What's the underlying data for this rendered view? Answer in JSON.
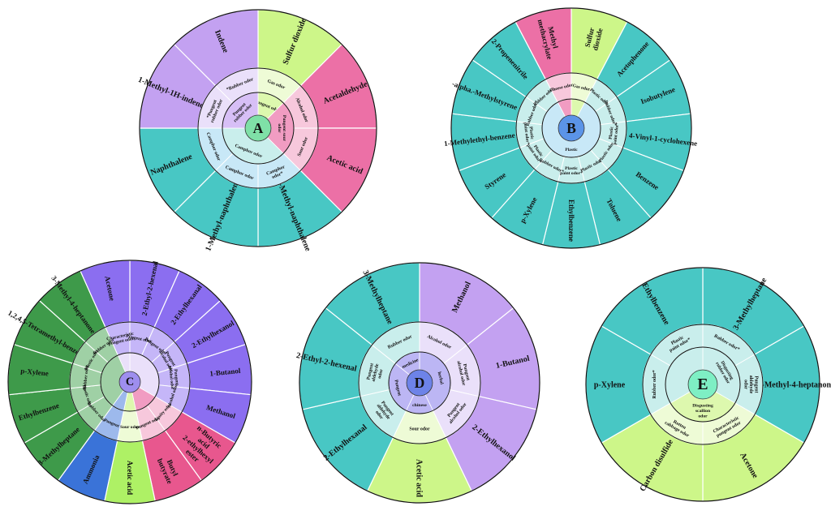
{
  "colors": {
    "teal": "#48C7C4",
    "teal_mid": "#8ADCD9",
    "teal_light": "#C9EEEC",
    "pink": "#EC70A6",
    "pink_mid": "#F19CC2",
    "pink_light": "#F7C8DC",
    "lime": "#CDF689",
    "lime_mid": "#DDF8AE",
    "lime_light": "#EEFBD6",
    "lavender": "#C3A1F1",
    "lavender_mid": "#D7BFF6",
    "lavender_light": "#EAE0FA",
    "magenta": "#E0548B",
    "blue_purple": "#8B6EF0",
    "blue_purple_light": "#C5B6F8",
    "dark_green": "#3E9A4A",
    "dark_green_light": "#9FD0A5",
    "royal_blue": "#3A73D8",
    "royal_blue_light": "#9DB9EC",
    "bright_lime": "#AEF165",
    "rose": "#E8578E",
    "sky": "#C8E8F7",
    "periwinkle": "#BCB6F4",
    "center_green": "#7FE0A7",
    "center_blue": "#5B94E8",
    "center_purple": "#9E8EEE",
    "center_blue2": "#6D83E8",
    "center_mint": "#7EEFC4",
    "border": "#111111"
  },
  "panels": [
    {
      "id": "A",
      "label": "A",
      "center_color": "center_green",
      "outer": [
        {
          "name": "Sulfur dioxide",
          "color": "lime"
        },
        {
          "name": "Acetaldehyde",
          "color": "pink"
        },
        {
          "name": "Acetic acid",
          "color": "pink"
        },
        {
          "name": "2-Methyl-naphthalene",
          "color": "teal"
        },
        {
          "name": "1-Methyl-naphthalene",
          "color": "teal"
        },
        {
          "name": "Naphthalene",
          "color": "teal"
        },
        {
          "name": "1-Methyl-1H-indene",
          "color": "lavender"
        },
        {
          "name": "Indene",
          "color": "lavender"
        }
      ],
      "inner": [
        {
          "name": "Gas odor",
          "color": "lime_light"
        },
        {
          "name": "Alcohol odor",
          "color": "pink_light"
        },
        {
          "name": "Sour odor",
          "color": "pink_light"
        },
        {
          "name": "Camphor odor*",
          "color": "sky"
        },
        {
          "name": "Camphor odor",
          "color": "sky"
        },
        {
          "name": "Camphor odor",
          "color": "sky"
        },
        {
          "name": "*Pungent rubber odor",
          "color": "lavender_light"
        },
        {
          "name": "*Rubber odor",
          "color": "lavender_light"
        }
      ],
      "core": [
        {
          "name": "Pungent odor",
          "color": "lime_mid",
          "start": 0,
          "end": 1
        },
        {
          "name": "Pungent sour odor",
          "color": "pink_mid",
          "start": 1,
          "end": 3
        },
        {
          "name": "Camphor odor",
          "color": "teal_light",
          "start": 3,
          "end": 6
        },
        {
          "name": "Pungent rubber odor",
          "color": "lavender_mid",
          "start": 6,
          "end": 8
        }
      ]
    },
    {
      "id": "B",
      "label": "B",
      "center_color": "center_blue",
      "outer": [
        {
          "name": "Sulfur dioxide",
          "color": "lime"
        },
        {
          "name": "Acetophenone",
          "color": "teal"
        },
        {
          "name": "Isobutylene",
          "color": "teal"
        },
        {
          "name": "4-Vinyl-1-cyclohexene",
          "color": "teal"
        },
        {
          "name": "Benzene",
          "color": "teal"
        },
        {
          "name": "Toluene",
          "color": "teal"
        },
        {
          "name": "Ethylbenzene",
          "color": "teal"
        },
        {
          "name": "p-Xylene",
          "color": "teal"
        },
        {
          "name": "Styrene",
          "color": "teal"
        },
        {
          "name": "1-Methylethyl-benzene",
          "color": "teal"
        },
        {
          "name": "-alpha.-Methylstyrene",
          "color": "teal"
        },
        {
          "name": "2-Propenenitrile",
          "color": "teal"
        },
        {
          "name": "Methyl methacrylate",
          "color": "pink"
        }
      ],
      "inner": [
        {
          "name": "Gas odor",
          "color": "lime_light"
        },
        {
          "name": "Plastic odor",
          "color": "teal_light"
        },
        {
          "name": "Rubber odor*",
          "color": "teal_light"
        },
        {
          "name": "Plastic paint odor*",
          "color": "teal_light"
        },
        {
          "name": "Plastic odor",
          "color": "teal_light"
        },
        {
          "name": "Plastic odor",
          "color": "teal_light"
        },
        {
          "name": "Plastic paint odor*",
          "color": "teal_light"
        },
        {
          "name": "Rubber odor*",
          "color": "teal_light"
        },
        {
          "name": "Plastic paint odor*",
          "color": "teal_light"
        },
        {
          "name": "Plastic paint odor*",
          "color": "teal_light"
        },
        {
          "name": "Rubber odor*",
          "color": "teal_light"
        },
        {
          "name": "Rubber odor",
          "color": "teal_light"
        },
        {
          "name": "Cheese odor",
          "color": "pink_light"
        }
      ],
      "core": [
        {
          "name": "",
          "color": "lime_mid",
          "start": 0,
          "end": 1
        },
        {
          "name": "Plastic",
          "color": "sky",
          "start": 1,
          "end": 12
        },
        {
          "name": "",
          "color": "pink_mid",
          "start": 12,
          "end": 13
        }
      ]
    },
    {
      "id": "C",
      "label": "C",
      "center_color": "center_purple",
      "outer": [
        {
          "name": "2-Ethyl-2-hexenal",
          "color": "blue_purple"
        },
        {
          "name": "2-Ethylhexanal",
          "color": "blue_purple"
        },
        {
          "name": "2-Ethylhexanol",
          "color": "blue_purple"
        },
        {
          "name": "1-Butanol",
          "color": "blue_purple"
        },
        {
          "name": "Methanol",
          "color": "blue_purple"
        },
        {
          "name": "n-Butyric acid 2-ethylhexyl ester",
          "color": "rose"
        },
        {
          "name": "Butyl butyrate",
          "color": "rose"
        },
        {
          "name": "Acetic acid",
          "color": "bright_lime"
        },
        {
          "name": "Ammonia",
          "color": "royal_blue"
        },
        {
          "name": "3-Methylheptane",
          "color": "dark_green"
        },
        {
          "name": "Ethylbenzene",
          "color": "dark_green"
        },
        {
          "name": "p-Xylene",
          "color": "dark_green"
        },
        {
          "name": "1,2,4,5-Tetramethyl-benzene",
          "color": "dark_green"
        },
        {
          "name": "3-Methyl-4-heptanone",
          "color": "dark_green"
        },
        {
          "name": "Acetone",
          "color": "blue_purple"
        }
      ],
      "inner": [
        {
          "name": "Pungent odor",
          "color": "blue_purple_light"
        },
        {
          "name": "Pungent odor",
          "color": "blue_purple_light"
        },
        {
          "name": "Pungent alcohol odor",
          "color": "blue_purple_light"
        },
        {
          "name": "Pungent alcohol odor",
          "color": "blue_purple_light"
        },
        {
          "name": "Alcohol odor",
          "color": "blue_purple_light"
        },
        {
          "name": "Fruity odor",
          "color": "pink_light"
        },
        {
          "name": "Pungent odor",
          "color": "pink_light"
        },
        {
          "name": "Sour odor",
          "color": "lime_light"
        },
        {
          "name": "Pungent",
          "color": "royal_blue_light"
        },
        {
          "name": "Rubber odor",
          "color": "dark_green_light"
        },
        {
          "name": "Plastic odor",
          "color": "dark_green_light"
        },
        {
          "name": "Rubber odor",
          "color": "dark_green_light"
        },
        {
          "name": "Plastic odor",
          "color": "dark_green_light"
        },
        {
          "name": "Rubber odor",
          "color": "dark_green_light"
        },
        {
          "name": "Characteristic pungent odor",
          "color": "blue_purple_light"
        }
      ],
      "core": [
        {
          "name": "",
          "color": "lavender_light",
          "start": 0,
          "end": 5
        },
        {
          "name": "",
          "color": "pink_mid",
          "start": 5,
          "end": 7
        },
        {
          "name": "",
          "color": "lime_mid",
          "start": 7,
          "end": 8
        },
        {
          "name": "",
          "color": "royal_blue_light",
          "start": 8,
          "end": 9
        },
        {
          "name": "",
          "color": "dark_green_light",
          "start": 9,
          "end": 14
        },
        {
          "name": "",
          "color": "lavender_light",
          "start": 14,
          "end": 15
        }
      ]
    },
    {
      "id": "D",
      "label": "D",
      "center_color": "center_blue2",
      "outer": [
        {
          "name": "Methanol",
          "color": "lavender"
        },
        {
          "name": "1-Butanol",
          "color": "lavender"
        },
        {
          "name": "2-Ethylhexanol",
          "color": "lavender"
        },
        {
          "name": "Acetic acid",
          "color": "lime"
        },
        {
          "name": "2-Ethylhexanal",
          "color": "teal"
        },
        {
          "name": "2-Ethyl-2-hexenal",
          "color": "teal"
        },
        {
          "name": "3-Methylheptane",
          "color": "teal"
        }
      ],
      "inner": [
        {
          "name": "Alcohol odor",
          "color": "lavender_light"
        },
        {
          "name": "Pungent alcohol odor",
          "color": "lavender_light"
        },
        {
          "name": "Pungent alcohol odor",
          "color": "lavender_light"
        },
        {
          "name": "Sour odor",
          "color": "lime_light"
        },
        {
          "name": "Pungent aldehyde odor",
          "color": "teal_light"
        },
        {
          "name": "Pungent aldehyde odor",
          "color": "teal_light"
        },
        {
          "name": "Rubber odor",
          "color": "teal_light"
        }
      ],
      "core": [
        {
          "name": "herbal",
          "color": "periwinkle",
          "start": 0,
          "end": 3
        },
        {
          "name": "chinese",
          "color": "periwinkle",
          "start": 3,
          "end": 4
        },
        {
          "name": "Pungent",
          "color": "periwinkle",
          "start": 4,
          "end": 6
        },
        {
          "name": "medicine",
          "color": "periwinkle",
          "start": 6,
          "end": 7
        }
      ]
    },
    {
      "id": "E",
      "label": "E",
      "center_color": "center_mint",
      "outer": [
        {
          "name": "3-Methylheptane",
          "color": "teal"
        },
        {
          "name": "3-Methyl-4-heptanone",
          "color": "teal"
        },
        {
          "name": "Acetone",
          "color": "lime"
        },
        {
          "name": "Carbon disulfide",
          "color": "lime"
        },
        {
          "name": "p-Xylene",
          "color": "teal"
        },
        {
          "name": "Ethylbenzene",
          "color": "teal"
        }
      ],
      "inner": [
        {
          "name": "Rubber odor*",
          "color": "teal_light"
        },
        {
          "name": "Pungent aldehyde odor",
          "color": "teal_light"
        },
        {
          "name": "Characteristic pungent odor",
          "color": "lime_light"
        },
        {
          "name": "Rotten cabbage odor",
          "color": "lime_light"
        },
        {
          "name": "Rubber odor*",
          "color": "teal_light"
        },
        {
          "name": "Plastic paint odor*",
          "color": "teal_light"
        }
      ],
      "core": [
        {
          "name": "Disgusting rubber odor",
          "color": "teal_light",
          "start": 0,
          "end": 2
        },
        {
          "name": "Disgusting scallion odor",
          "color": "lime_mid",
          "start": 2,
          "end": 4
        },
        {
          "name": "",
          "color": "teal_light",
          "start": 4,
          "end": 6
        }
      ]
    }
  ]
}
